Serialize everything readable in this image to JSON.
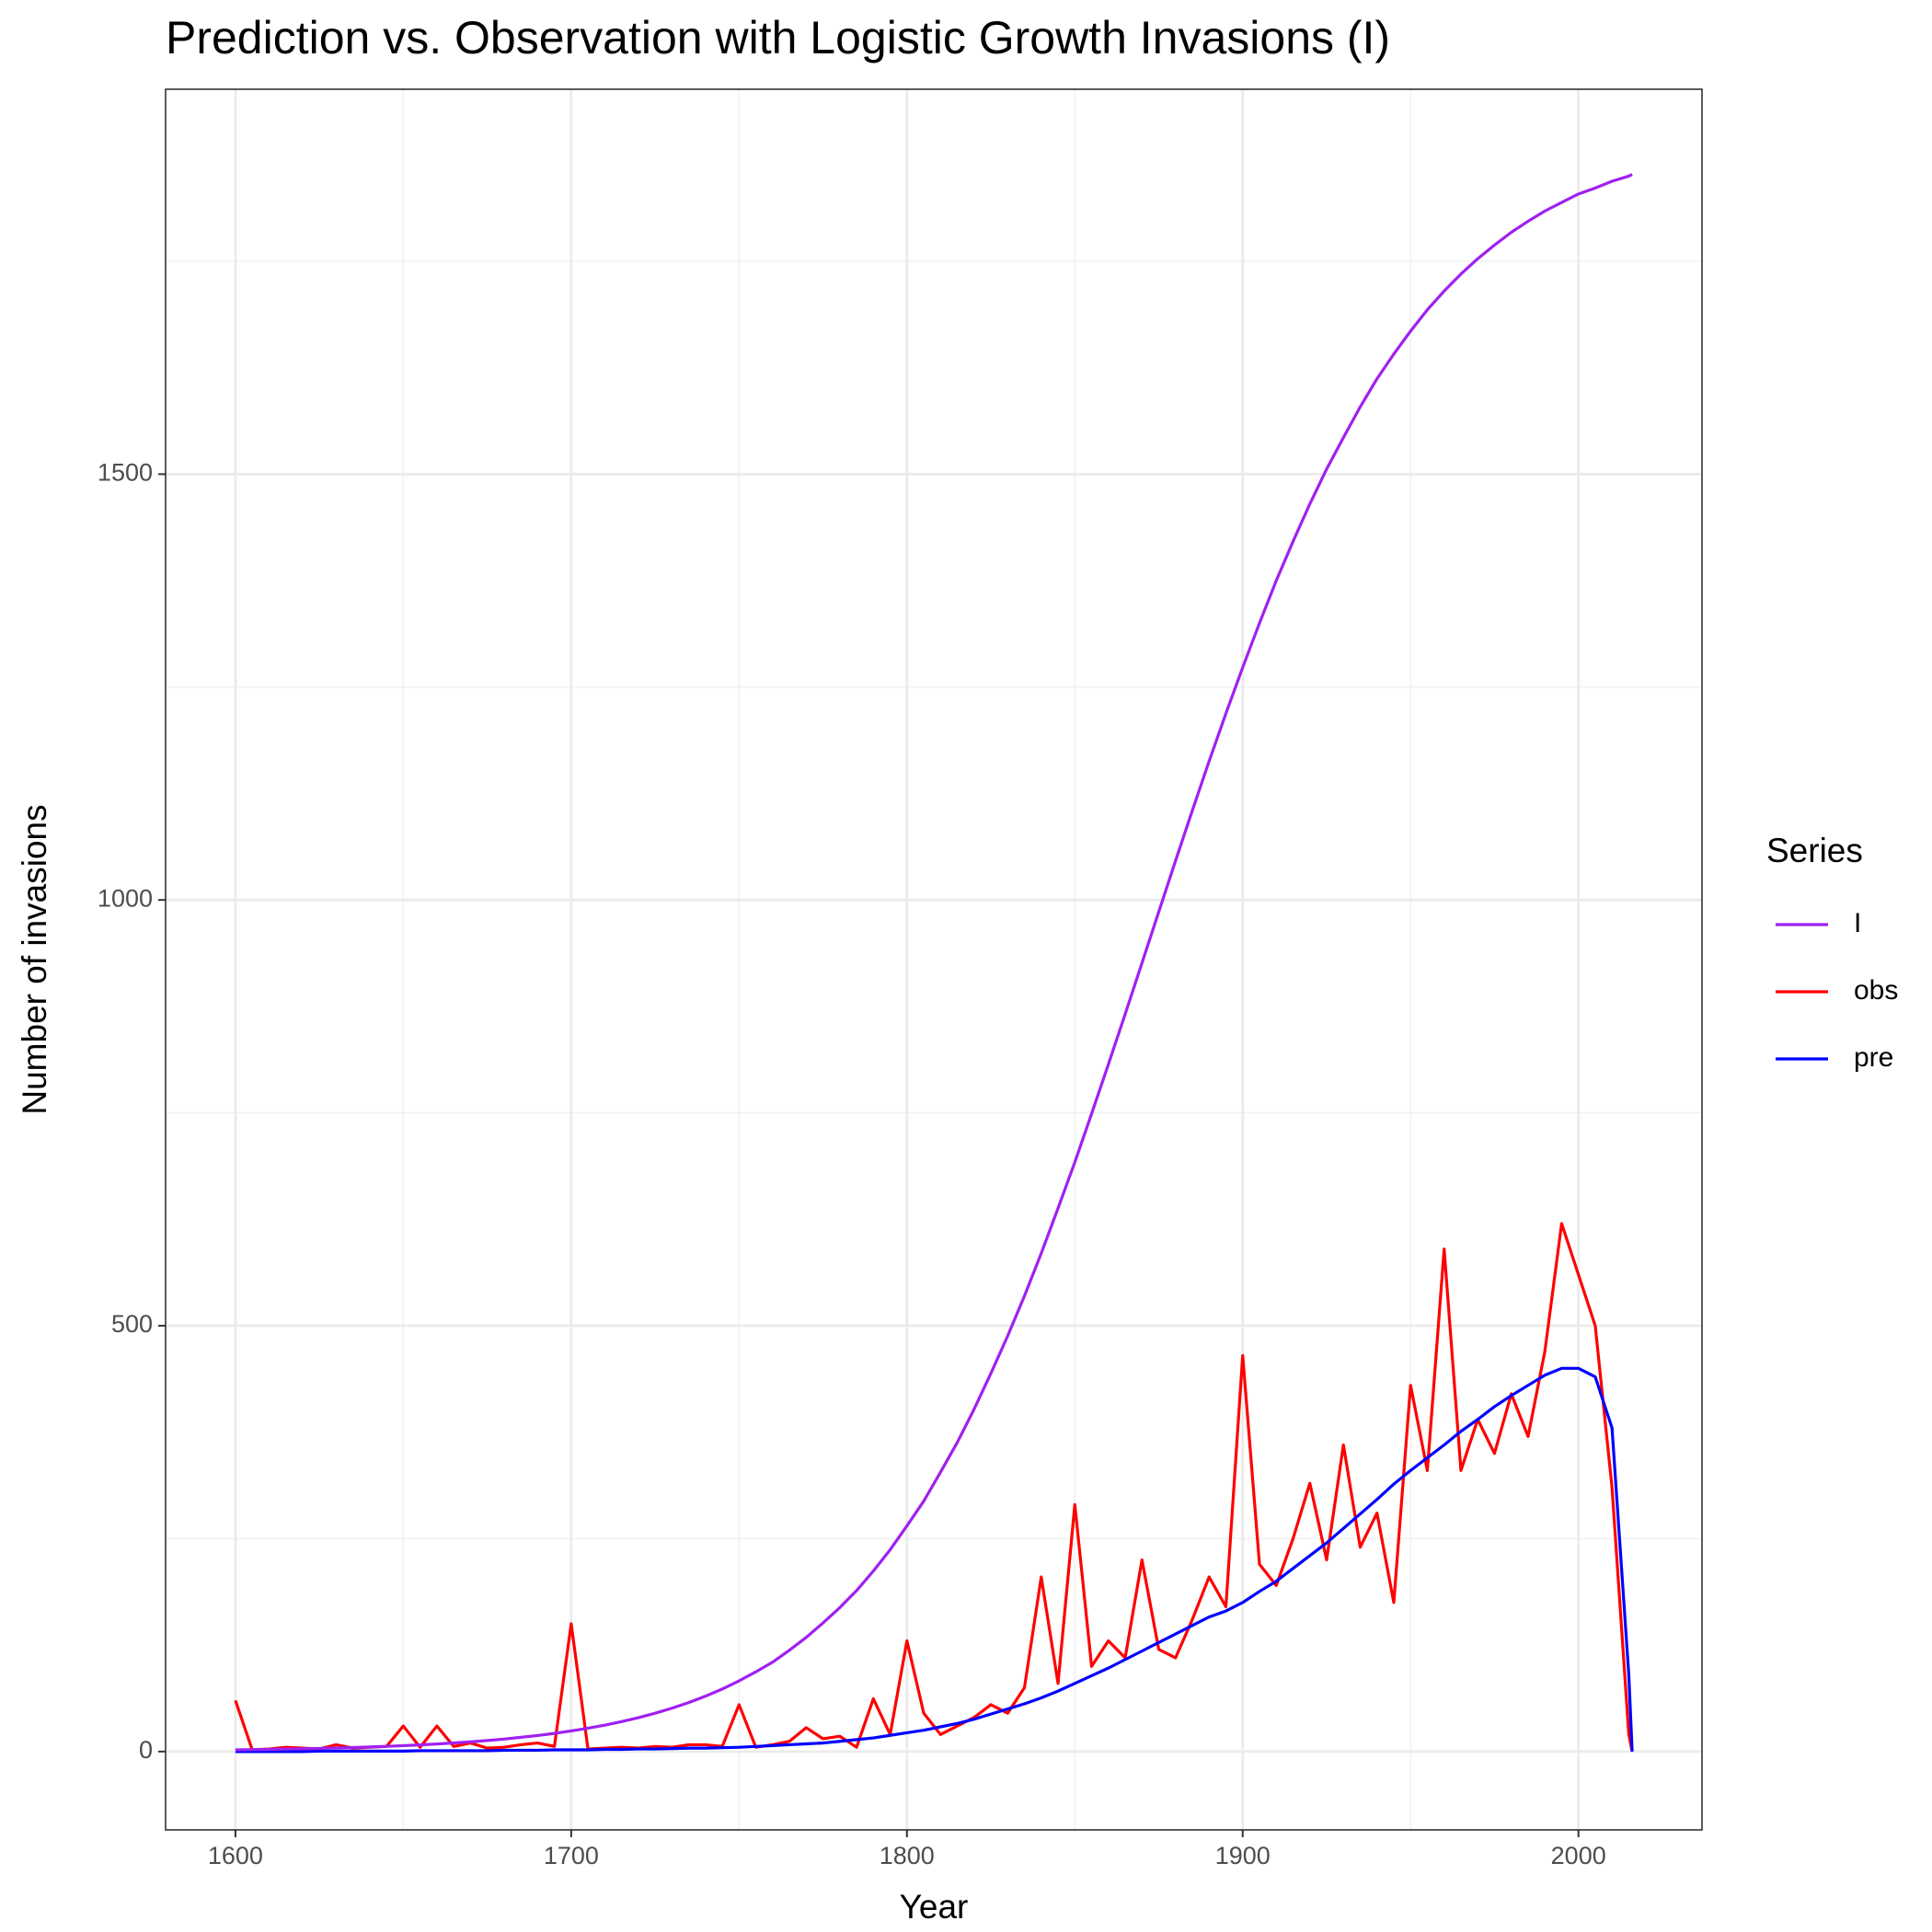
{
  "chart_data": {
    "type": "line",
    "title": "Prediction vs. Observation with Logistic Growth Invasions (I)",
    "xlabel": "Year",
    "ylabel": "Number of invasions",
    "legend_title": "Series",
    "x": [
      1600,
      1605,
      1610,
      1615,
      1620,
      1625,
      1630,
      1635,
      1640,
      1645,
      1650,
      1655,
      1660,
      1665,
      1670,
      1675,
      1680,
      1685,
      1690,
      1695,
      1700,
      1705,
      1710,
      1715,
      1720,
      1725,
      1730,
      1735,
      1740,
      1745,
      1750,
      1755,
      1760,
      1765,
      1770,
      1775,
      1780,
      1785,
      1790,
      1795,
      1800,
      1805,
      1810,
      1815,
      1820,
      1825,
      1830,
      1835,
      1840,
      1845,
      1850,
      1855,
      1860,
      1865,
      1870,
      1875,
      1880,
      1885,
      1890,
      1895,
      1900,
      1905,
      1910,
      1915,
      1920,
      1925,
      1930,
      1935,
      1940,
      1945,
      1950,
      1955,
      1960,
      1965,
      1970,
      1975,
      1980,
      1985,
      1990,
      1995,
      2000,
      2005,
      2010,
      2015,
      2016
    ],
    "series": [
      {
        "name": "I",
        "color": "#a020f0",
        "values": [
          2,
          2.2,
          2.5,
          2.9,
          3.2,
          3.7,
          4.2,
          4.7,
          5.4,
          6.1,
          6.9,
          7.8,
          8.9,
          10.1,
          11.4,
          12.9,
          14.6,
          16.7,
          18.8,
          21.3,
          24.2,
          27.4,
          31,
          35.1,
          39.7,
          45,
          50.9,
          57.5,
          65,
          73.4,
          83,
          93.6,
          105,
          119,
          134,
          151,
          169,
          189,
          212,
          237,
          265,
          294,
          328,
          363,
          402,
          444,
          488,
          535,
          585,
          638,
          692,
          749,
          807,
          866,
          926,
          986,
          1046,
          1105,
          1163,
          1219,
          1273,
          1325,
          1375,
          1421,
          1465,
          1506,
          1543,
          1579,
          1612,
          1641,
          1668,
          1693,
          1715,
          1735,
          1753,
          1769,
          1784,
          1797,
          1809,
          1819,
          1829,
          1836,
          1844,
          1850,
          1852
        ]
      },
      {
        "name": "obs",
        "color": "#ff0000",
        "values": [
          60,
          2,
          3,
          5,
          4,
          3,
          8,
          4,
          5,
          6,
          30,
          5,
          30,
          6,
          10,
          4,
          5,
          8,
          10,
          6,
          150,
          3,
          4,
          5,
          4,
          6,
          5,
          8,
          8,
          6,
          55,
          5,
          8,
          12,
          28,
          15,
          18,
          5,
          62,
          20,
          130,
          45,
          20,
          30,
          40,
          55,
          45,
          75,
          205,
          80,
          290,
          100,
          130,
          110,
          225,
          120,
          110,
          155,
          205,
          170,
          465,
          220,
          195,
          250,
          315,
          225,
          360,
          240,
          280,
          175,
          430,
          330,
          590,
          330,
          390,
          350,
          420,
          370,
          470,
          620,
          560,
          500,
          310,
          20,
          0
        ]
      },
      {
        "name": "pre",
        "color": "#0000ff",
        "values": [
          0,
          0,
          0,
          0,
          0,
          0.5,
          0.5,
          0.5,
          0.5,
          0.5,
          0.5,
          1,
          1,
          1,
          1,
          1,
          1.5,
          1.5,
          1.5,
          2,
          2,
          2,
          2.5,
          2.5,
          3,
          3,
          3.5,
          4,
          4,
          4.5,
          5,
          6,
          7,
          8,
          9,
          10,
          12,
          14,
          16,
          19,
          22,
          25,
          29,
          33,
          38,
          44,
          50,
          56,
          63,
          71,
          80,
          89,
          98,
          108,
          118,
          128,
          138,
          148,
          158,
          165,
          175,
          188,
          200,
          215,
          230,
          245,
          262,
          279,
          296,
          314,
          330,
          345,
          360,
          376,
          390,
          405,
          418,
          430,
          442,
          450,
          450,
          440,
          380,
          90,
          0
        ]
      }
    ],
    "xlim": [
      1579.2,
      2036.8
    ],
    "ylim": [
      -92,
      1952
    ],
    "xticks": [
      1600,
      1700,
      1800,
      1900,
      2000
    ],
    "yticks": [
      0,
      500,
      1000,
      1500
    ],
    "xminor": [
      1650,
      1750,
      1850,
      1950
    ],
    "yminor": [
      250,
      750,
      1250,
      1750
    ],
    "grid": true,
    "legend": "right"
  }
}
